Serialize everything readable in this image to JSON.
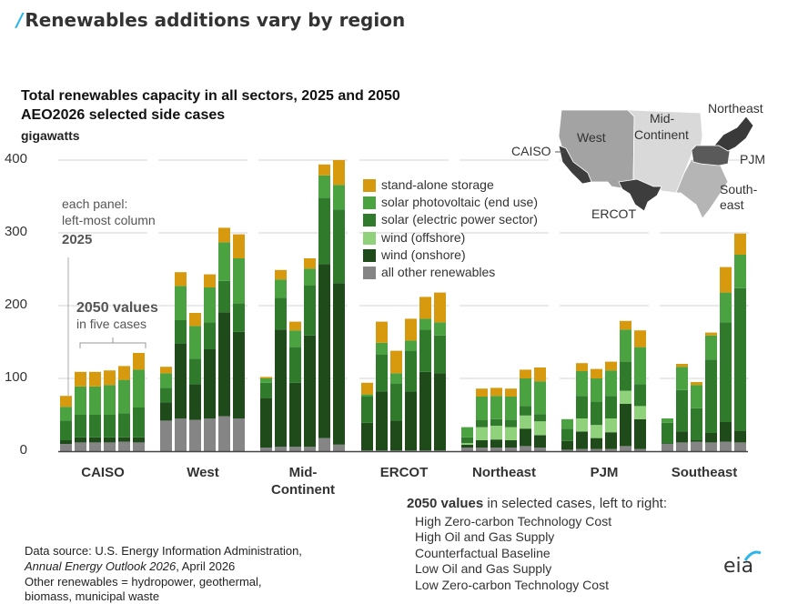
{
  "headline": "Renewables additions vary by region",
  "chart_data": {
    "type": "bar",
    "stacked": true,
    "title": "Total renewables capacity  in all sectors, 2025 and 2050",
    "subtitle": "AEO2026 selected side cases",
    "ylabel": "gigawatts",
    "ylim": [
      0,
      400
    ],
    "yticks": [
      "0",
      "100",
      "200",
      "300",
      "400"
    ],
    "grid": true,
    "legend_position": "top-center",
    "series": [
      {
        "name": "all other renewables",
        "color": "#858585"
      },
      {
        "name": "wind (onshore)",
        "color": "#1f4b1b"
      },
      {
        "name": "wind (offshore)",
        "color": "#8fd27b"
      },
      {
        "name": "solar (electric power sector)",
        "color": "#2f7a2b"
      },
      {
        "name": "solar photovoltaic (end use)",
        "color": "#4aa241"
      },
      {
        "name": "stand-alone storage",
        "color": "#d79a0e"
      }
    ],
    "legend_order": [
      "stand-alone storage",
      "solar photovoltaic (end use)",
      "solar (electric power sector)",
      "wind (offshore)",
      "wind (onshore)",
      "all other renewables"
    ],
    "columns": [
      "2025",
      "High Zero-carbon Technology Cost",
      "High Oil and Gas Supply",
      "Counterfactual Baseline",
      "Low Oil and Gas Supply",
      "Low Zero-carbon Technology Cost"
    ],
    "panels": [
      {
        "region": "CAISO",
        "values": [
          [
            10,
            5,
            0,
            27,
            19,
            15
          ],
          [
            12,
            7,
            0,
            31,
            39,
            20
          ],
          [
            12,
            7,
            0,
            31,
            39,
            20
          ],
          [
            12,
            7,
            0,
            31,
            41,
            20
          ],
          [
            13,
            6,
            0,
            33,
            46,
            19
          ],
          [
            12,
            7,
            0,
            41,
            52,
            23
          ]
        ]
      },
      {
        "region": "West",
        "values": [
          [
            42,
            25,
            0,
            20,
            20,
            9
          ],
          [
            45,
            103,
            0,
            32,
            47,
            19
          ],
          [
            43,
            49,
            0,
            35,
            45,
            18
          ],
          [
            45,
            95,
            0,
            37,
            48,
            18
          ],
          [
            48,
            143,
            0,
            43,
            53,
            20
          ],
          [
            45,
            119,
            0,
            39,
            62,
            33
          ]
        ]
      },
      {
        "region": "Mid-\nContinent",
        "values": [
          [
            5,
            68,
            0,
            21,
            6,
            2
          ],
          [
            6,
            161,
            0,
            44,
            25,
            13
          ],
          [
            6,
            88,
            0,
            49,
            23,
            12
          ],
          [
            6,
            153,
            0,
            69,
            23,
            14
          ],
          [
            18,
            239,
            0,
            91,
            31,
            15
          ],
          [
            9,
            222,
            0,
            101,
            34,
            34
          ]
        ]
      },
      {
        "region": "ERCOT",
        "values": [
          [
            1,
            38,
            0,
            36,
            3,
            16
          ],
          [
            1,
            81,
            0,
            51,
            16,
            29
          ],
          [
            1,
            41,
            0,
            51,
            14,
            31
          ],
          [
            1,
            81,
            0,
            56,
            14,
            30
          ],
          [
            1,
            108,
            0,
            58,
            15,
            30
          ],
          [
            1,
            106,
            0,
            52,
            18,
            41
          ]
        ]
      },
      {
        "region": "Northeast",
        "values": [
          [
            5,
            4,
            2,
            8,
            14,
            0
          ],
          [
            5,
            10,
            18,
            10,
            32,
            11
          ],
          [
            5,
            11,
            19,
            9,
            32,
            11
          ],
          [
            5,
            10,
            18,
            10,
            32,
            11
          ],
          [
            7,
            24,
            18,
            13,
            38,
            12
          ],
          [
            5,
            17,
            19,
            10,
            45,
            19
          ]
        ]
      },
      {
        "region": "PJM",
        "values": [
          [
            2,
            12,
            0,
            17,
            13,
            0
          ],
          [
            3,
            24,
            18,
            31,
            34,
            11
          ],
          [
            3,
            15,
            18,
            32,
            32,
            13
          ],
          [
            3,
            23,
            19,
            31,
            35,
            12
          ],
          [
            7,
            58,
            18,
            40,
            44,
            12
          ],
          [
            3,
            41,
            18,
            30,
            51,
            23
          ]
        ]
      },
      {
        "region": "Southeast",
        "values": [
          [
            10,
            1,
            0,
            28,
            6,
            0
          ],
          [
            12,
            15,
            0,
            57,
            32,
            4
          ],
          [
            13,
            2,
            0,
            44,
            32,
            4
          ],
          [
            12,
            13,
            0,
            101,
            33,
            4
          ],
          [
            13,
            27,
            0,
            137,
            41,
            35
          ],
          [
            12,
            16,
            0,
            196,
            46,
            29
          ]
        ]
      }
    ],
    "annotations": {
      "panel_note_1": "each panel:",
      "panel_note_2": "left-most column",
      "panel_note_3": "2025",
      "cases_note_1": "2050 values",
      "cases_note_2": "in five cases"
    }
  },
  "map": {
    "labels": [
      "CAISO",
      "West",
      "Mid-",
      "Continent",
      "Northeast",
      "PJM",
      "South-",
      "east",
      "ERCOT"
    ]
  },
  "cases_list": {
    "heading_bold": "2050 values",
    "heading_rest": " in selected cases, left to right:",
    "items": [
      "High Zero-carbon Technology Cost",
      "High Oil and Gas Supply",
      "Counterfactual Baseline",
      "Low Oil and Gas Supply",
      "Low Zero-carbon Technology Cost"
    ]
  },
  "source": {
    "line1": "Data source: U.S. Energy Information Administration,",
    "line2_italic": "Annual Energy Outlook 2026",
    "line2_rest": ", April 2026",
    "line3": "Other renewables = hydropower, geothermal,",
    "line4": "biomass, municipal waste"
  },
  "logo": "eia"
}
